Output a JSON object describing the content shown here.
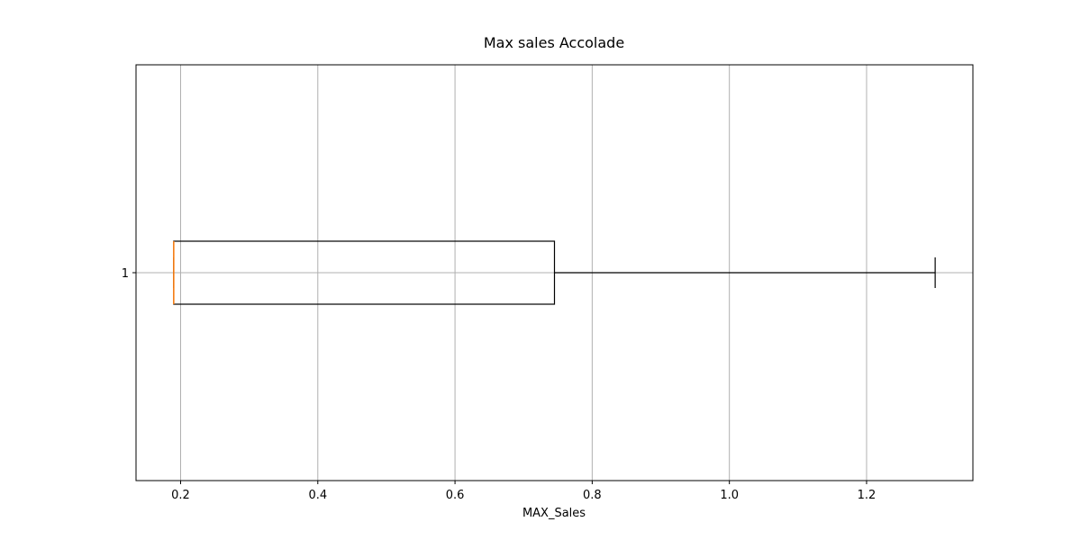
{
  "chart_data": {
    "type": "boxplot",
    "orientation": "horizontal",
    "title": "Max sales Accolade",
    "xlabel": "MAX_Sales",
    "ylabel": "",
    "xlim": [
      0.135,
      1.355
    ],
    "x_ticks": [
      0.2,
      0.4,
      0.6,
      0.8,
      1.0,
      1.2
    ],
    "x_tick_labels": [
      "0.2",
      "0.4",
      "0.6",
      "0.8",
      "1.0",
      "1.2"
    ],
    "y_tick_labels": [
      "1"
    ],
    "grid": true,
    "series": [
      {
        "category": "1",
        "whisker_low": 0.19,
        "q1": 0.19,
        "median": 0.19,
        "q3": 0.745,
        "whisker_high": 1.3
      }
    ],
    "colors": {
      "box": "#000000",
      "median": "#ff7f0e",
      "grid": "#b0b0b0",
      "axes": "#000000"
    }
  }
}
